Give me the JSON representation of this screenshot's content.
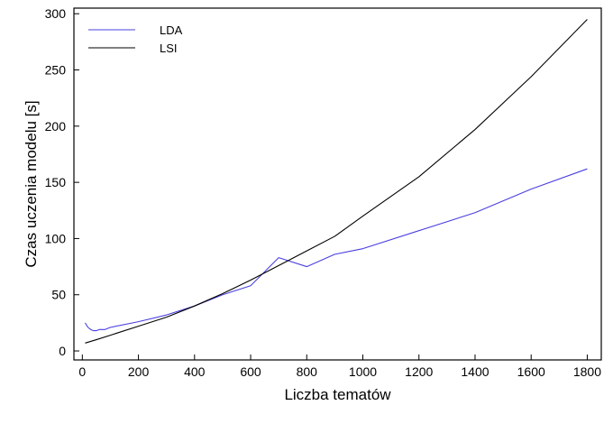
{
  "chart_data": {
    "type": "line",
    "title": "",
    "xlabel": "Liczba tematów",
    "ylabel": "Czas uczenia modelu [s]",
    "xlim": [
      -30,
      1850
    ],
    "ylim": [
      -8,
      305
    ],
    "xticks": [
      0,
      200,
      400,
      600,
      800,
      1000,
      1200,
      1400,
      1600,
      1800
    ],
    "yticks": [
      0,
      50,
      100,
      150,
      200,
      250,
      300
    ],
    "grid": false,
    "legend_position": "top-left",
    "series": [
      {
        "name": "LDA",
        "color": "#4b3fe0",
        "x": [
          10,
          20,
          30,
          40,
          50,
          60,
          80,
          100,
          200,
          300,
          400,
          500,
          600,
          700,
          800,
          900,
          1000,
          1200,
          1400,
          1600,
          1800
        ],
        "y": [
          25,
          21,
          19,
          18,
          18,
          19,
          19,
          21,
          26,
          32,
          40,
          50,
          58,
          83,
          75,
          86,
          91,
          107,
          123,
          144,
          162
        ]
      },
      {
        "name": "LSI",
        "color": "#000000",
        "x": [
          10,
          50,
          100,
          200,
          300,
          400,
          500,
          600,
          700,
          800,
          900,
          1000,
          1200,
          1400,
          1600,
          1800
        ],
        "y": [
          7,
          10,
          14,
          22,
          30,
          40,
          51,
          63,
          76,
          89,
          102,
          120,
          155,
          197,
          244,
          295
        ]
      }
    ]
  }
}
